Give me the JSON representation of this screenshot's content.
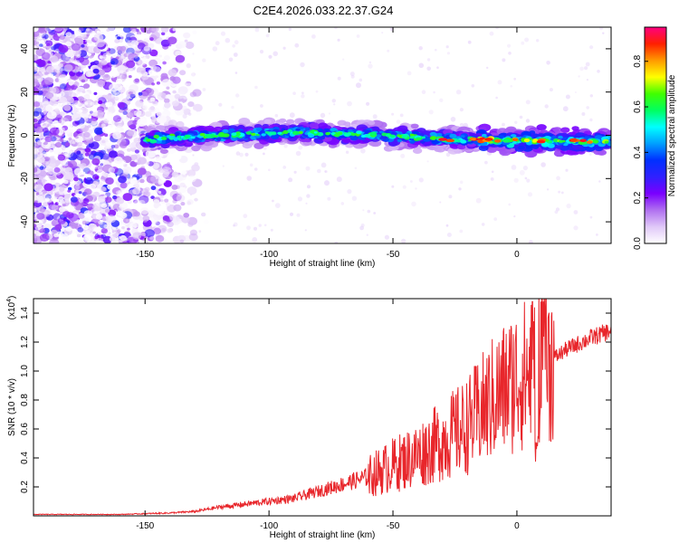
{
  "title": "C2E4.2026.033.22.37.G24",
  "colors": {
    "snr_line": "#e8262b",
    "colorbar": [
      "#ffffff",
      "#e0c8f8",
      "#b070f0",
      "#7a00ff",
      "#3020ff",
      "#0030ff",
      "#00a0ff",
      "#00ffff",
      "#00ff60",
      "#40ff00",
      "#ffff00",
      "#ff9a00",
      "#ff2000",
      "#ff0080"
    ]
  },
  "chart_data": [
    {
      "type": "heatmap",
      "title": "C2E4.2026.033.22.37.G24",
      "xlabel": "Height of straight line (km)",
      "ylabel": "Frequency (Hz)",
      "xlim": [
        -195,
        38
      ],
      "ylim": [
        -50,
        50
      ],
      "xticks": [
        -150,
        -100,
        -50,
        0
      ],
      "yticks": [
        -40,
        -20,
        0,
        20,
        40
      ],
      "colorbar": {
        "label": "Normalized spectral amplitude",
        "range": [
          0.0,
          0.95
        ],
        "ticks": [
          0.0,
          0.2,
          0.4,
          0.6,
          0.8
        ]
      },
      "features": {
        "noise_region_x": [
          -195,
          -130
        ],
        "ridge_x": [
          -150,
          38
        ],
        "ridge_center_frequency": -2
      }
    },
    {
      "type": "line",
      "xlabel": "Height of straight line (km)",
      "ylabel": "SNR (10 * v/v)",
      "y_multiplier": "(x10^4)",
      "xlim": [
        -195,
        38
      ],
      "ylim": [
        0.0,
        1.5
      ],
      "xticks": [
        -150,
        -100,
        -50,
        0
      ],
      "yticks": [
        0.2,
        0.4,
        0.6,
        0.8,
        1.0,
        1.2,
        1.4
      ],
      "series": [
        {
          "x": [
            -195,
            -180,
            -160,
            -150,
            -140,
            -130,
            -120,
            -110,
            -100,
            -90,
            -80,
            -70,
            -60,
            -50,
            -40,
            -30,
            -20,
            -10,
            0,
            10,
            20,
            30,
            38
          ],
          "values": [
            0.01,
            0.01,
            0.01,
            0.015,
            0.02,
            0.03,
            0.06,
            0.08,
            0.1,
            0.12,
            0.17,
            0.22,
            0.27,
            0.35,
            0.42,
            0.52,
            0.62,
            0.8,
            0.95,
            1.03,
            1.15,
            1.23,
            1.28
          ]
        }
      ]
    }
  ]
}
